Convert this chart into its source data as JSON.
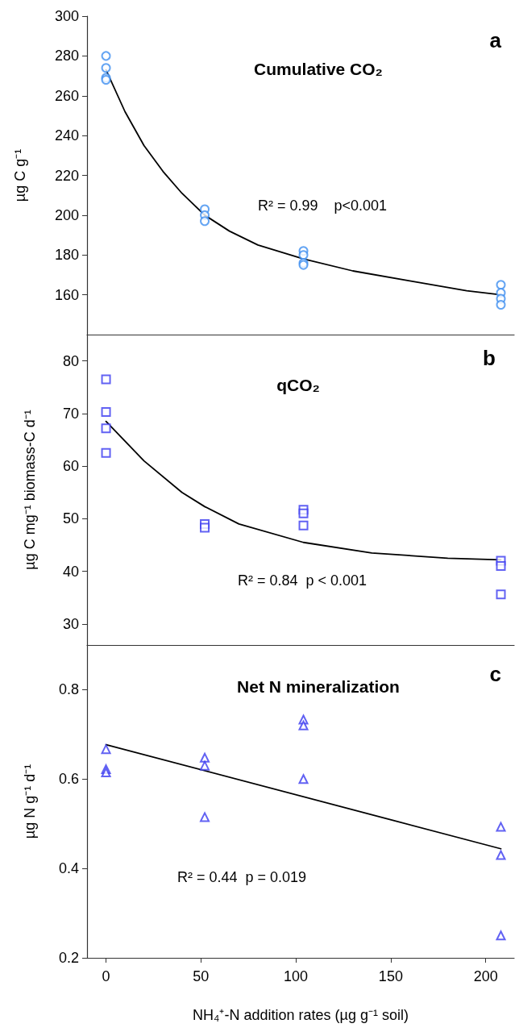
{
  "chart_data": [
    {
      "type": "scatter",
      "title": "Cumulative CO₂",
      "ylabel": "µg C g⁻¹",
      "annotations": [
        "a",
        "R² = 0.99    p<0.001"
      ],
      "xlim": [
        -10,
        215
      ],
      "xticks": [
        0,
        50,
        100,
        150,
        200
      ],
      "ylim": [
        140,
        300
      ],
      "yticks": [
        160,
        180,
        200,
        220,
        240,
        260,
        280,
        300
      ],
      "tick_labels": "y",
      "series": [
        {
          "color": "#3f8ff0",
          "marker": "circle",
          "x": [
            0,
            0,
            0,
            0,
            52,
            52,
            52,
            104,
            104,
            104,
            104,
            208,
            208,
            208,
            208
          ],
          "values": [
            280,
            274,
            269,
            268,
            203,
            200,
            197,
            182,
            180,
            176,
            175,
            165,
            161,
            158,
            155
          ]
        },
        {
          "type": "line",
          "color": "#000000",
          "marker": "none",
          "line_style": "solid",
          "x": [
            0,
            10,
            20,
            30,
            40,
            52,
            65,
            80,
            104,
            130,
            160,
            190,
            208
          ],
          "values": [
            273,
            252,
            235,
            222,
            211,
            200,
            192,
            185,
            178,
            172,
            167,
            162,
            160
          ]
        }
      ]
    },
    {
      "type": "scatter",
      "title": "qCO₂",
      "ylabel": "µg C mg⁻¹ biomass-C d⁻¹",
      "annotations": [
        "b",
        "R² = 0.84  p < 0.001"
      ],
      "xlim": [
        -10,
        215
      ],
      "xticks": [
        0,
        50,
        100,
        150,
        200
      ],
      "ylim": [
        26,
        85
      ],
      "yticks": [
        30,
        40,
        50,
        60,
        70,
        80
      ],
      "tick_labels": "y",
      "series": [
        {
          "color": "#3b3bf0",
          "marker": "square",
          "x": [
            0,
            0,
            0,
            0,
            52,
            52,
            104,
            104,
            104,
            208,
            208,
            208
          ],
          "values": [
            76.5,
            70.3,
            67.2,
            62.5,
            49,
            48.3,
            51.7,
            51,
            48.7,
            42,
            41,
            35.6
          ]
        },
        {
          "type": "line",
          "color": "#000000",
          "marker": "none",
          "line_style": "solid",
          "x": [
            0,
            20,
            40,
            52,
            70,
            104,
            140,
            180,
            208
          ],
          "values": [
            68.5,
            61,
            55,
            52.3,
            49,
            45.5,
            43.5,
            42.5,
            42.2
          ]
        }
      ]
    },
    {
      "type": "scatter",
      "title": "Net N mineralization",
      "ylabel": "µg N g⁻¹ d⁻¹",
      "xlabel": "NH₄⁺-N addition rates (µg g⁻¹ soil)",
      "annotations": [
        "c",
        "R² = 0.44  p = 0.019"
      ],
      "xlim": [
        -10,
        215
      ],
      "xticks": [
        0,
        50,
        100,
        150,
        200
      ],
      "ylim": [
        0.2,
        0.9
      ],
      "yticks": [
        0.2,
        0.4,
        0.6,
        0.8
      ],
      "series": [
        {
          "color": "#3b3bf0",
          "marker": "triangle",
          "x": [
            0,
            0,
            0,
            52,
            52,
            52,
            104,
            104,
            104,
            208,
            208,
            208
          ],
          "values": [
            0.667,
            0.622,
            0.615,
            0.648,
            0.63,
            0.515,
            0.733,
            0.72,
            0.6,
            0.493,
            0.43,
            0.25
          ]
        },
        {
          "type": "line",
          "color": "#000000",
          "marker": "none",
          "line_style": "solid",
          "x": [
            0,
            208
          ],
          "values": [
            0.677,
            0.444
          ]
        }
      ]
    }
  ]
}
